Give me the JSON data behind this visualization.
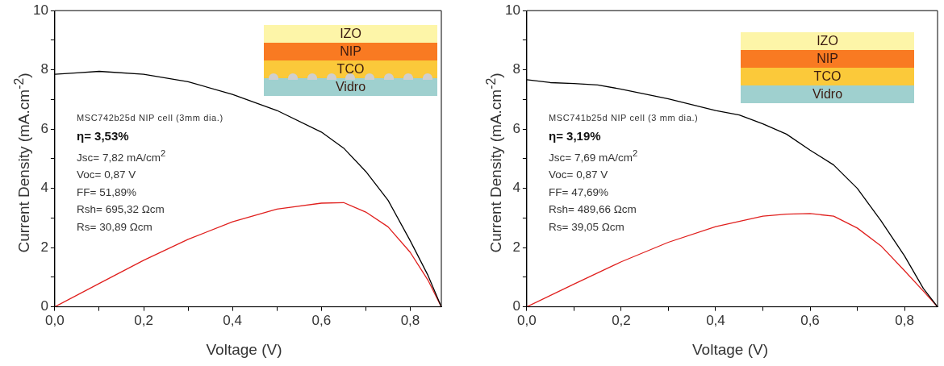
{
  "chart_data": [
    {
      "type": "line",
      "xlabel": "Voltage (V)",
      "ylabel": "Current Density (mA.cm$^{-2}$)",
      "xlim": [
        0,
        0.87
      ],
      "ylim": [
        0,
        10
      ],
      "xticks": [
        {
          "value": 0,
          "label": "0,0"
        },
        {
          "value": 0.1,
          "label": null
        },
        {
          "value": 0.2,
          "label": "0,2"
        },
        {
          "value": 0.3,
          "label": null
        },
        {
          "value": 0.4,
          "label": "0,4"
        },
        {
          "value": 0.5,
          "label": null
        },
        {
          "value": 0.6,
          "label": "0,6"
        },
        {
          "value": 0.7,
          "label": null
        },
        {
          "value": 0.8,
          "label": "0,8"
        }
      ],
      "yticks": [
        0,
        {
          "value": 1,
          "label": null
        },
        2,
        {
          "value": 3,
          "label": null
        },
        4,
        {
          "value": 5,
          "label": null
        },
        6,
        {
          "value": 7,
          "label": null
        },
        8,
        {
          "value": 9,
          "label": null
        },
        10
      ],
      "grid": false,
      "legend": false,
      "marker": "none",
      "series": [
        {
          "color": "#000000",
          "x": [
            0,
            0.05,
            0.1,
            0.2,
            0.3,
            0.4,
            0.5,
            0.6,
            0.65,
            0.7,
            0.75,
            0.8,
            0.84,
            0.87
          ],
          "values": [
            7.85,
            7.9,
            7.95,
            7.85,
            7.6,
            7.17,
            6.63,
            5.9,
            5.36,
            4.57,
            3.6,
            2.23,
            1.06,
            0
          ]
        },
        {
          "color": "#e0201e",
          "x": [
            0,
            0.1,
            0.2,
            0.3,
            0.4,
            0.5,
            0.6,
            0.65,
            0.7,
            0.75,
            0.8,
            0.84,
            0.87
          ],
          "values": [
            0,
            0.79,
            1.57,
            2.28,
            2.87,
            3.3,
            3.5,
            3.52,
            3.2,
            2.7,
            1.84,
            0.9,
            0
          ]
        }
      ],
      "annotations": [
        "MSC742b25d NIP cell (3mm dia.)",
        "η= 3,53%",
        "Jsc=  7,82 mA/cm$^{2}$",
        "Voc= 0,87 V",
        "FF= 51,89%",
        "Rsh= 695,32 Ωcm",
        "Rs= 30,89 Ωcm",
        "IZO",
        "NIP",
        "TCO",
        "Vidro"
      ]
    },
    {
      "type": "line",
      "xlabel": "Voltage (V)",
      "ylabel": "Current Density (mA.cm$^{-2}$)",
      "xlim": [
        0,
        0.87
      ],
      "ylim": [
        0,
        10
      ],
      "xticks": [
        {
          "value": 0,
          "label": "0,0"
        },
        {
          "value": 0.1,
          "label": null
        },
        {
          "value": 0.2,
          "label": "0,2"
        },
        {
          "value": 0.3,
          "label": null
        },
        {
          "value": 0.4,
          "label": "0,4"
        },
        {
          "value": 0.5,
          "label": null
        },
        {
          "value": 0.6,
          "label": "0,6"
        },
        {
          "value": 0.7,
          "label": null
        },
        {
          "value": 0.8,
          "label": "0,8"
        }
      ],
      "yticks": [
        0,
        {
          "value": 1,
          "label": null
        },
        2,
        {
          "value": 3,
          "label": null
        },
        4,
        {
          "value": 5,
          "label": null
        },
        6,
        {
          "value": 7,
          "label": null
        },
        8,
        {
          "value": 9,
          "label": null
        },
        10
      ],
      "grid": false,
      "legend": false,
      "marker": "none",
      "series": [
        {
          "color": "#000000",
          "x": [
            0,
            0.05,
            0.1,
            0.15,
            0.2,
            0.3,
            0.4,
            0.45,
            0.5,
            0.55,
            0.6,
            0.65,
            0.7,
            0.75,
            0.8,
            0.84,
            0.87
          ],
          "values": [
            7.67,
            7.57,
            7.54,
            7.49,
            7.35,
            7.02,
            6.63,
            6.48,
            6.18,
            5.83,
            5.29,
            4.79,
            4.0,
            2.91,
            1.72,
            0.62,
            0
          ]
        },
        {
          "color": "#e0201e",
          "x": [
            0,
            0.1,
            0.2,
            0.3,
            0.4,
            0.5,
            0.55,
            0.6,
            0.65,
            0.7,
            0.75,
            0.8,
            0.84,
            0.87
          ],
          "values": [
            0,
            0.77,
            1.52,
            2.18,
            2.71,
            3.06,
            3.13,
            3.15,
            3.06,
            2.66,
            2.06,
            1.22,
            0.53,
            0
          ]
        }
      ],
      "annotations": [
        "MSC741b25d NIP cell (3 mm dia.)",
        "η= 3,19%",
        "Jsc=  7,69 mA/cm$^{2}$",
        "Voc= 0,87 V",
        "FF= 47,69%",
        "Rsh= 489,66 Ωcm",
        "Rs= 39,05 Ωcm",
        "IZO",
        "NIP",
        "TCO",
        "Vidro"
      ]
    }
  ]
}
